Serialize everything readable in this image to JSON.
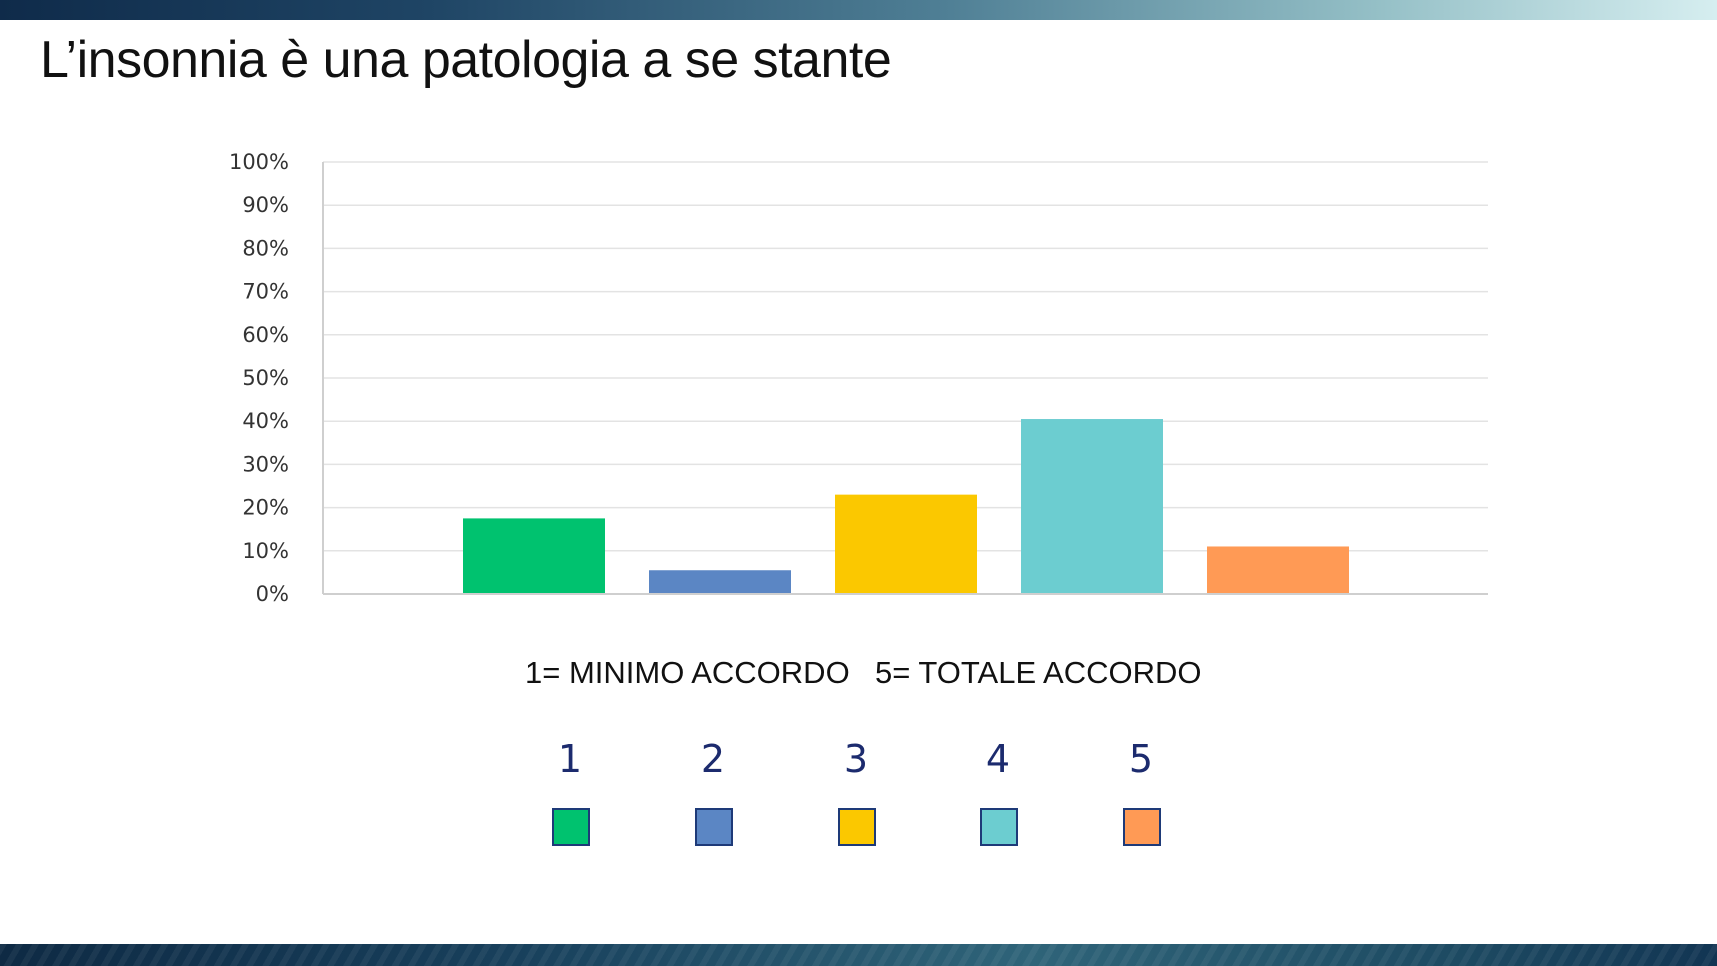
{
  "slide": {
    "title": "L’insonnia è una patologia a se stante"
  },
  "chart_data": {
    "type": "bar",
    "categories": [
      "1",
      "2",
      "3",
      "4",
      "5"
    ],
    "values": [
      17.5,
      5.5,
      23,
      40.5,
      11
    ],
    "colors": [
      "#00c26f",
      "#5b86c4",
      "#fbc800",
      "#6ccdd0",
      "#ff9a55"
    ],
    "ylim": [
      0,
      100
    ],
    "yticks": [
      0,
      10,
      20,
      30,
      40,
      50,
      60,
      70,
      80,
      90,
      100
    ],
    "ytick_labels": [
      "0%",
      "10%",
      "20%",
      "30%",
      "40%",
      "50%",
      "60%",
      "70%",
      "80%",
      "90%",
      "100%"
    ],
    "grid": true,
    "legend": {
      "position": "bottom",
      "labels": [
        "1",
        "2",
        "3",
        "4",
        "5"
      ]
    },
    "title": "",
    "xlabel": "",
    "ylabel": ""
  },
  "scale_caption": {
    "min": "1= MINIMO ACCORDO",
    "max": "5= TOTALE ACCORDO"
  }
}
